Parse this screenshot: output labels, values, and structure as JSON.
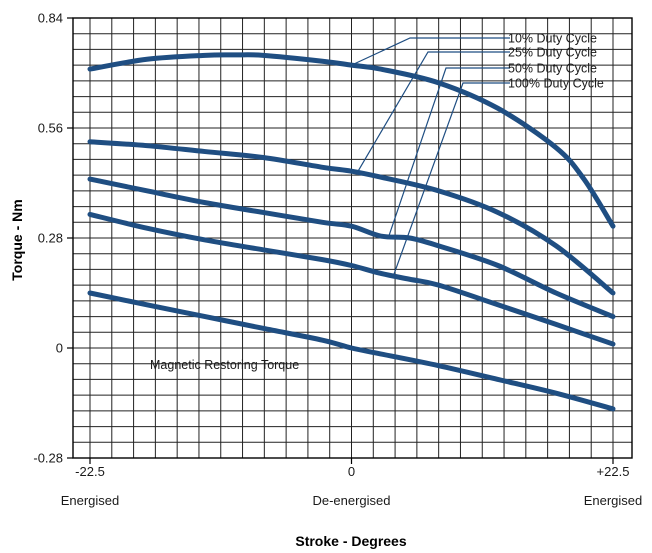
{
  "chart_data": {
    "type": "line",
    "xlabel": "Stroke - Degrees",
    "ylabel": "Torque - Nm",
    "xlim": [
      -22.5,
      22.5
    ],
    "ylim": [
      -0.28,
      0.84
    ],
    "x_ticks": [
      {
        "value": -22.5,
        "label": "-22.5",
        "sublabel": "Energised"
      },
      {
        "value": 0,
        "label": "0",
        "sublabel": "De-energised"
      },
      {
        "value": 22.5,
        "label": "+22.5",
        "sublabel": "Energised"
      }
    ],
    "y_ticks": [
      {
        "value": 0.84,
        "label": "0.84"
      },
      {
        "value": 0.56,
        "label": "0.56"
      },
      {
        "value": 0.28,
        "label": "0.28"
      },
      {
        "value": 0,
        "label": "0"
      },
      {
        "value": -0.28,
        "label": "-0.28"
      }
    ],
    "grid": true,
    "line_color": "#1f4e82",
    "series": [
      {
        "name": "10% Duty Cycle",
        "x": [
          -22.5,
          -17.6,
          -12.6,
          -10,
          -7.6,
          -2.5,
          0,
          2.5,
          7.5,
          12.6,
          17.6,
          20,
          22.5
        ],
        "y": [
          0.71,
          0.735,
          0.745,
          0.746,
          0.745,
          0.73,
          0.72,
          0.71,
          0.675,
          0.61,
          0.51,
          0.43,
          0.31
        ]
      },
      {
        "name": "25% Duty Cycle",
        "x": [
          -22.5,
          -17.6,
          -12.6,
          -7.6,
          -2.5,
          0,
          2.5,
          7.5,
          12.6,
          17.6,
          22.5
        ],
        "y": [
          0.525,
          0.515,
          0.5,
          0.485,
          0.46,
          0.45,
          0.435,
          0.4,
          0.345,
          0.26,
          0.14
        ]
      },
      {
        "name": "50% Duty Cycle",
        "x": [
          -22.5,
          -17.6,
          -12.6,
          -7.6,
          -2.5,
          0,
          2.5,
          5,
          7.5,
          12.6,
          17.6,
          22.5
        ],
        "y": [
          0.43,
          0.4,
          0.37,
          0.345,
          0.32,
          0.31,
          0.285,
          0.28,
          0.26,
          0.21,
          0.14,
          0.08
        ]
      },
      {
        "name": "100% Duty Cycle",
        "x": [
          -22.5,
          -17.6,
          -12.6,
          -7.6,
          -2.5,
          0,
          2.5,
          5,
          7.5,
          12.6,
          17.6,
          22.5
        ],
        "y": [
          0.34,
          0.305,
          0.275,
          0.25,
          0.225,
          0.21,
          0.19,
          0.175,
          0.16,
          0.11,
          0.06,
          0.01
        ]
      },
      {
        "name": "Magnetic Restoring Torque",
        "x": [
          -22.5,
          -17.6,
          -12.6,
          -7.6,
          -2.5,
          0,
          2.5,
          7.5,
          12.6,
          17.6,
          22.5
        ],
        "y": [
          0.14,
          0.11,
          0.08,
          0.05,
          0.02,
          0,
          -0.015,
          -0.045,
          -0.08,
          -0.115,
          -0.155
        ]
      }
    ],
    "legend": [
      {
        "label": "10% Duty Cycle",
        "series": 0
      },
      {
        "label": "25% Duty Cycle",
        "series": 1
      },
      {
        "label": "50% Duty Cycle",
        "series": 2
      },
      {
        "label": "100% Duty Cycle",
        "series": 3
      }
    ],
    "annotations": [
      {
        "text": "Magnetic Restoring Torque",
        "series": 4
      }
    ]
  }
}
